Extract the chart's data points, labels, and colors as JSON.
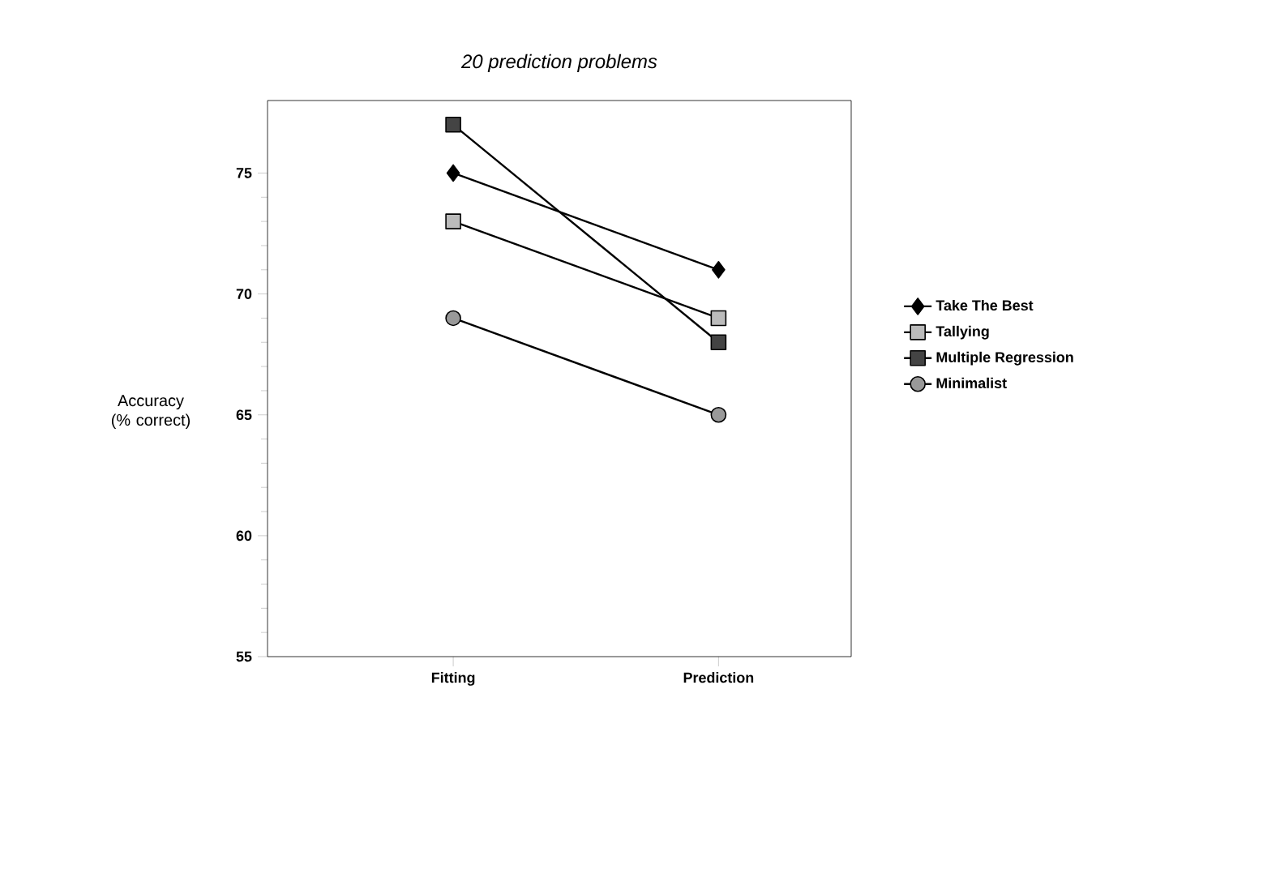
{
  "chart_data": {
    "type": "line",
    "title": "20 prediction problems",
    "ylabel": "Accuracy (% correct)",
    "categories": [
      "Fitting",
      "Prediction"
    ],
    "series": [
      {
        "name": "Take The Best",
        "color": "#000000",
        "marker": "diamond",
        "values": [
          75,
          71
        ]
      },
      {
        "name": "Tallying",
        "color": "#bbbbbb",
        "marker": "square",
        "values": [
          73,
          69
        ]
      },
      {
        "name": "Multiple Regression",
        "color": "#444444",
        "marker": "square",
        "values": [
          77,
          68
        ]
      },
      {
        "name": "Minimalist",
        "color": "#999999",
        "marker": "circle",
        "values": [
          69,
          65
        ]
      }
    ],
    "ylim": [
      55,
      78
    ],
    "yticks": [
      55,
      60,
      65,
      70,
      75
    ],
    "grid": false,
    "legend": "right"
  }
}
